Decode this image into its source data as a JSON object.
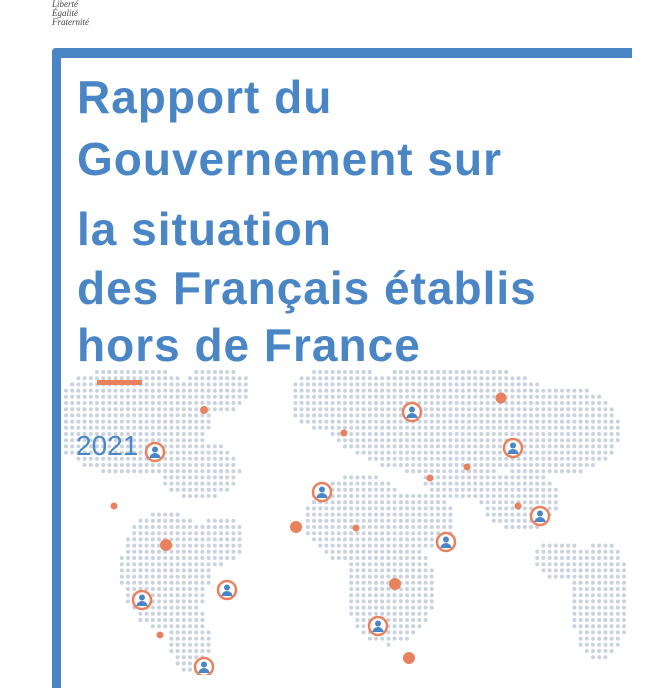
{
  "header": {
    "motto": [
      "Liberté",
      "Égalité",
      "Fraternité"
    ]
  },
  "cover": {
    "title_lines": [
      "Rapport du",
      "Gouvernement sur",
      "la situation",
      "des Français établis",
      "hors de France"
    ],
    "year": "2021"
  },
  "colors": {
    "primary": "#4a86c5",
    "accent": "#e8825e",
    "map_dots": "#c9d2df"
  }
}
